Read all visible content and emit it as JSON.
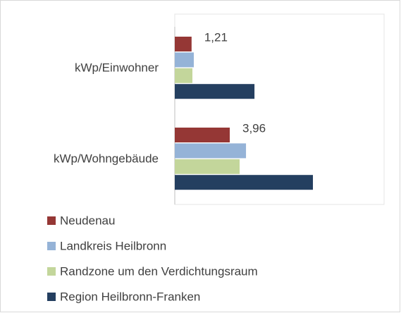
{
  "chart_data": {
    "type": "hbar",
    "categories": [
      "kWp/Einwohner",
      "kWp/Wohngebäude"
    ],
    "series": [
      {
        "name": "Neudenau",
        "color": "#953735",
        "values": [
          1.21,
          3.96
        ],
        "value_labels": [
          "1,21",
          "3,96"
        ]
      },
      {
        "name": "Landkreis Heilbronn",
        "color": "#95b3d7",
        "values": [
          1.37,
          5.13
        ]
      },
      {
        "name": "Randzone um den Verdichtungsraum",
        "color": "#c3d69b",
        "values": [
          1.27,
          4.67
        ]
      },
      {
        "name": "Region Heilbronn-Franken",
        "color": "#243f60",
        "values": [
          5.74,
          9.95
        ]
      }
    ]
  }
}
